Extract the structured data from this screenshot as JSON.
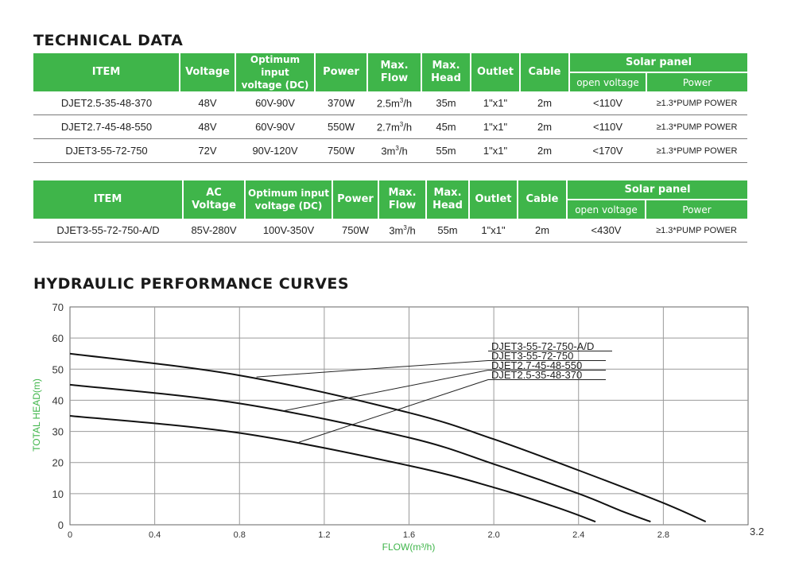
{
  "technical_title": "TECHNICAL DATA",
  "hydraulic_title": "HYDRAULIC PERFORMANCE CURVES",
  "colors": {
    "brand_green": "#3fb54a",
    "axis_label_green": "#3fb54a"
  },
  "table1": {
    "headers": {
      "item": "ITEM",
      "voltage": "Voltage",
      "opt_voltage_1": "Optimum input",
      "opt_voltage_2": "voltage (DC)",
      "power": "Power",
      "flow_1": "Max.",
      "flow_2": "Flow",
      "head_1": "Max.",
      "head_2": "Head",
      "outlet": "Outlet",
      "cable": "Cable",
      "solar": "Solar panel",
      "open_voltage": "open voltage",
      "solar_power": "Power"
    },
    "rows": [
      {
        "item": "DJET2.5-35-48-370",
        "voltage": "48V",
        "opt_voltage": "60V-90V",
        "power": "370W",
        "flow": "2.5m",
        "flow_unit": "/h",
        "head": "35m",
        "outlet": "1\"x1\"",
        "cable": "2m",
        "open_voltage": "<110V",
        "solar_power": "≥1.3*PUMP POWER"
      },
      {
        "item": "DJET2.7-45-48-550",
        "voltage": "48V",
        "opt_voltage": "60V-90V",
        "power": "550W",
        "flow": "2.7m",
        "flow_unit": "/h",
        "head": "45m",
        "outlet": "1\"x1\"",
        "cable": "2m",
        "open_voltage": "<110V",
        "solar_power": "≥1.3*PUMP POWER"
      },
      {
        "item": "DJET3-55-72-750",
        "voltage": "72V",
        "opt_voltage": "90V-120V",
        "power": "750W",
        "flow": "3m",
        "flow_unit": "/h",
        "head": "55m",
        "outlet": "1\"x1\"",
        "cable": "2m",
        "open_voltage": "<170V",
        "solar_power": "≥1.3*PUMP POWER"
      }
    ]
  },
  "table2": {
    "headers": {
      "item": "ITEM",
      "ac_1": "AC",
      "ac_2": "Voltage",
      "opt_voltage_1": "Optimum input",
      "opt_voltage_2": "voltage (DC)",
      "power": "Power",
      "flow_1": "Max.",
      "flow_2": "Flow",
      "head_1": "Max.",
      "head_2": "Head",
      "outlet": "Outlet",
      "cable": "Cable",
      "solar": "Solar panel",
      "open_voltage": "open voltage",
      "solar_power": "Power"
    },
    "rows": [
      {
        "item": "DJET3-55-72-750-A/D",
        "ac_voltage": "85V-280V",
        "opt_voltage": "100V-350V",
        "power": "750W",
        "flow": "3m",
        "flow_unit": "/h",
        "head": "55m",
        "outlet": "1\"x1\"",
        "cable": "2m",
        "open_voltage": "<430V",
        "solar_power": "≥1.3*PUMP POWER"
      }
    ]
  },
  "chart_data": {
    "type": "line",
    "xlabel": "FLOW(m³/h)",
    "ylabel": "TOTAL HEAD(m)",
    "xlim": [
      0,
      3.2
    ],
    "ylim": [
      0,
      70
    ],
    "xticks": [
      "0",
      "0.4",
      "0.8",
      "1.2",
      "1.6",
      "2.0",
      "2.4",
      "2.8",
      "3.2"
    ],
    "yticks": [
      "0",
      "10",
      "20",
      "30",
      "40",
      "50",
      "60",
      "70"
    ],
    "grid": true,
    "legend_labels": [
      "DJET3-55-72-750-A/D",
      "DJET3-55-72-750",
      "DJET2.7-45-48-550",
      "DJET2.5-35-48-370"
    ],
    "series": [
      {
        "name": "DJET3-55-72-750",
        "x": [
          0,
          0.8,
          1.6,
          2.0,
          2.4,
          2.8,
          3.0
        ],
        "y": [
          55,
          48,
          36,
          27.5,
          17.5,
          7,
          1
        ]
      },
      {
        "name": "DJET2.7-45-48-550",
        "x": [
          0,
          0.8,
          1.6,
          2.0,
          2.4,
          2.6,
          2.74
        ],
        "y": [
          45,
          39,
          28,
          19.5,
          10,
          4.5,
          1
        ]
      },
      {
        "name": "DJET2.5-35-48-370",
        "x": [
          0,
          0.8,
          1.6,
          2.0,
          2.3,
          2.48
        ],
        "y": [
          35,
          29.5,
          19,
          12,
          5.5,
          1
        ]
      }
    ],
    "leader_lines": [
      {
        "label_index": 1,
        "curve_point": [
          0.88,
          47.5
        ]
      },
      {
        "label_index": 2,
        "curve_point": [
          1.0,
          36.5
        ]
      },
      {
        "label_index": 3,
        "curve_point": [
          1.08,
          26.5
        ]
      }
    ]
  }
}
